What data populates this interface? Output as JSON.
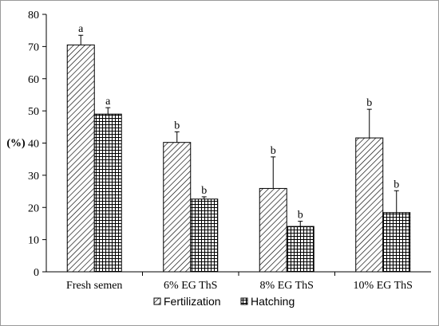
{
  "chart_data": {
    "type": "bar",
    "title": "",
    "xlabel": "",
    "ylabel": "(%)",
    "ylim": [
      0,
      80
    ],
    "yticks": [
      0,
      10,
      20,
      30,
      40,
      50,
      60,
      70,
      80
    ],
    "grid": false,
    "legend_position": "bottom",
    "categories": [
      "Fresh semen",
      "6% EG ThS",
      "8% EG  ThS",
      "10% EG ThS"
    ],
    "series": [
      {
        "name": "Fertilization",
        "pattern": "diagonal-hatch",
        "values": [
          70.5,
          40.2,
          25.9,
          41.6
        ],
        "error": [
          3.0,
          3.3,
          9.8,
          8.9
        ],
        "labels": [
          "a",
          "b",
          "b",
          "b"
        ]
      },
      {
        "name": "Hatching",
        "pattern": "grid-hatch",
        "values": [
          49.0,
          22.6,
          14.1,
          18.4
        ],
        "error": [
          2.0,
          0.7,
          1.6,
          6.8
        ],
        "labels": [
          "a",
          "b",
          "b",
          "b"
        ]
      }
    ]
  }
}
